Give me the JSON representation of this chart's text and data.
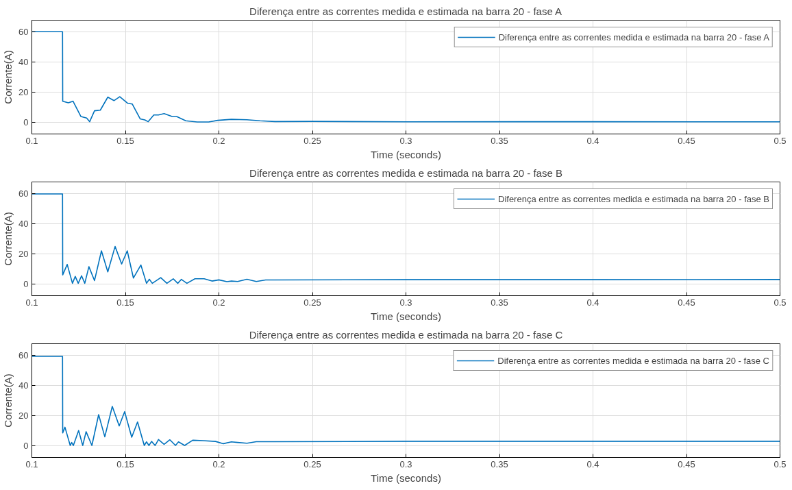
{
  "chart_data": [
    {
      "type": "line",
      "title": "Diferença entre as correntes medida e estimada na barra 20 - fase A",
      "xlabel": "Time (seconds)",
      "ylabel": "Corrente(A)",
      "xlim": [
        0.1,
        0.5
      ],
      "ylim": [
        -8,
        68
      ],
      "xticks": [
        0.1,
        0.15,
        0.2,
        0.25,
        0.3,
        0.35,
        0.4,
        0.45,
        0.5
      ],
      "yticks": [
        0,
        20,
        40,
        60
      ],
      "grid": true,
      "legend": "top right",
      "series": [
        {
          "name": "Diferença entre as correntes medida e estimada na barra 20 - fase A",
          "color": "#0072bd",
          "x": [
            0.1,
            0.1164,
            0.1165,
            0.1195,
            0.122,
            0.1262,
            0.1293,
            0.1309,
            0.1335,
            0.1366,
            0.1406,
            0.1439,
            0.147,
            0.1512,
            0.1537,
            0.1579,
            0.1604,
            0.1622,
            0.1652,
            0.1677,
            0.1707,
            0.175,
            0.1774,
            0.1823,
            0.1884,
            0.1945,
            0.1994,
            0.2067,
            0.215,
            0.222,
            0.23,
            0.25,
            0.3,
            0.4,
            0.5
          ],
          "values": [
            60.3,
            60.3,
            13.9,
            12.8,
            13.9,
            3.7,
            2.6,
            0.2,
            7.5,
            7.9,
            16.6,
            14.3,
            16.9,
            12.5,
            12.0,
            2.1,
            1.4,
            0.2,
            4.7,
            4.7,
            5.6,
            3.7,
            3.7,
            0.8,
            0,
            0,
            1.1,
            1.8,
            1.5,
            0.8,
            0.3,
            0.4,
            0.1,
            0.2,
            0.1
          ]
        }
      ]
    },
    {
      "type": "line",
      "title": "Diferença entre as correntes medida e estimada na barra 20 - fase B",
      "xlabel": "Time (seconds)",
      "ylabel": "Corrente(A)",
      "xlim": [
        0.1,
        0.5
      ],
      "ylim": [
        -8,
        68
      ],
      "xticks": [
        0.1,
        0.15,
        0.2,
        0.25,
        0.3,
        0.35,
        0.4,
        0.45,
        0.5
      ],
      "yticks": [
        0,
        20,
        40,
        60
      ],
      "grid": true,
      "legend": "top right",
      "series": [
        {
          "name": "Diferença entre as correntes medida e estimada na barra 20 - fase B",
          "color": "#0072bd",
          "x": [
            0.1,
            0.1164,
            0.1165,
            0.1189,
            0.1217,
            0.1232,
            0.1248,
            0.1266,
            0.1283,
            0.1305,
            0.1335,
            0.1372,
            0.1406,
            0.1445,
            0.148,
            0.151,
            0.1543,
            0.1583,
            0.1613,
            0.1628,
            0.1644,
            0.1662,
            0.1689,
            0.1722,
            0.1756,
            0.178,
            0.1799,
            0.1829,
            0.1872,
            0.1921,
            0.1963,
            0.2,
            0.2043,
            0.2067,
            0.21,
            0.215,
            0.22,
            0.225,
            0.23,
            0.3,
            0.4,
            0.5
          ],
          "values": [
            60,
            60,
            5.9,
            12.9,
            0.3,
            4.9,
            0.3,
            5.3,
            0.3,
            11.4,
            2.1,
            22,
            7.9,
            24.9,
            13.2,
            22,
            3.8,
            12.5,
            0.3,
            3,
            0.3,
            1.8,
            4.1,
            0.3,
            3.3,
            0.3,
            2.9,
            0.3,
            3.3,
            3.3,
            1.8,
            2.6,
            1.4,
            1.8,
            1.5,
            3,
            1.5,
            2.5,
            2.5,
            2.7,
            2.7,
            2.8
          ]
        }
      ]
    },
    {
      "type": "line",
      "title": "Diferença entre as correntes medida e estimada na barra 20 - fase C",
      "xlabel": "Time (seconds)",
      "ylabel": "Corrente(A)",
      "xlim": [
        0.1,
        0.5
      ],
      "ylim": [
        -8,
        68
      ],
      "xticks": [
        0.1,
        0.15,
        0.2,
        0.25,
        0.3,
        0.35,
        0.4,
        0.45,
        0.5
      ],
      "yticks": [
        0,
        20,
        40,
        60
      ],
      "grid": true,
      "legend": "top right",
      "series": [
        {
          "name": "Diferença entre as correntes medida e estimada na barra 20 - fase C",
          "color": "#0072bd",
          "x": [
            0.1,
            0.1164,
            0.1165,
            0.1177,
            0.1205,
            0.1213,
            0.1222,
            0.125,
            0.1272,
            0.129,
            0.1321,
            0.1357,
            0.139,
            0.143,
            0.1467,
            0.1496,
            0.1534,
            0.1565,
            0.1601,
            0.1613,
            0.1626,
            0.164,
            0.1659,
            0.1677,
            0.1707,
            0.1738,
            0.1768,
            0.1784,
            0.1817,
            0.186,
            0.1915,
            0.1982,
            0.2024,
            0.2067,
            0.21,
            0.215,
            0.22,
            0.23,
            0.3,
            0.4,
            0.5
          ],
          "values": [
            59.5,
            59.5,
            8.4,
            12.2,
            0,
            2,
            0,
            10,
            0,
            9.2,
            0,
            20.6,
            5.8,
            26.1,
            13.1,
            22.6,
            5.5,
            15.7,
            0,
            2.4,
            0,
            2.7,
            0,
            4,
            0.8,
            3.8,
            0,
            2.4,
            0,
            3.5,
            3.2,
            2.7,
            1.2,
            2.4,
            2,
            1.5,
            2.5,
            2.5,
            2.8,
            2.8,
            2.8
          ]
        }
      ]
    }
  ]
}
